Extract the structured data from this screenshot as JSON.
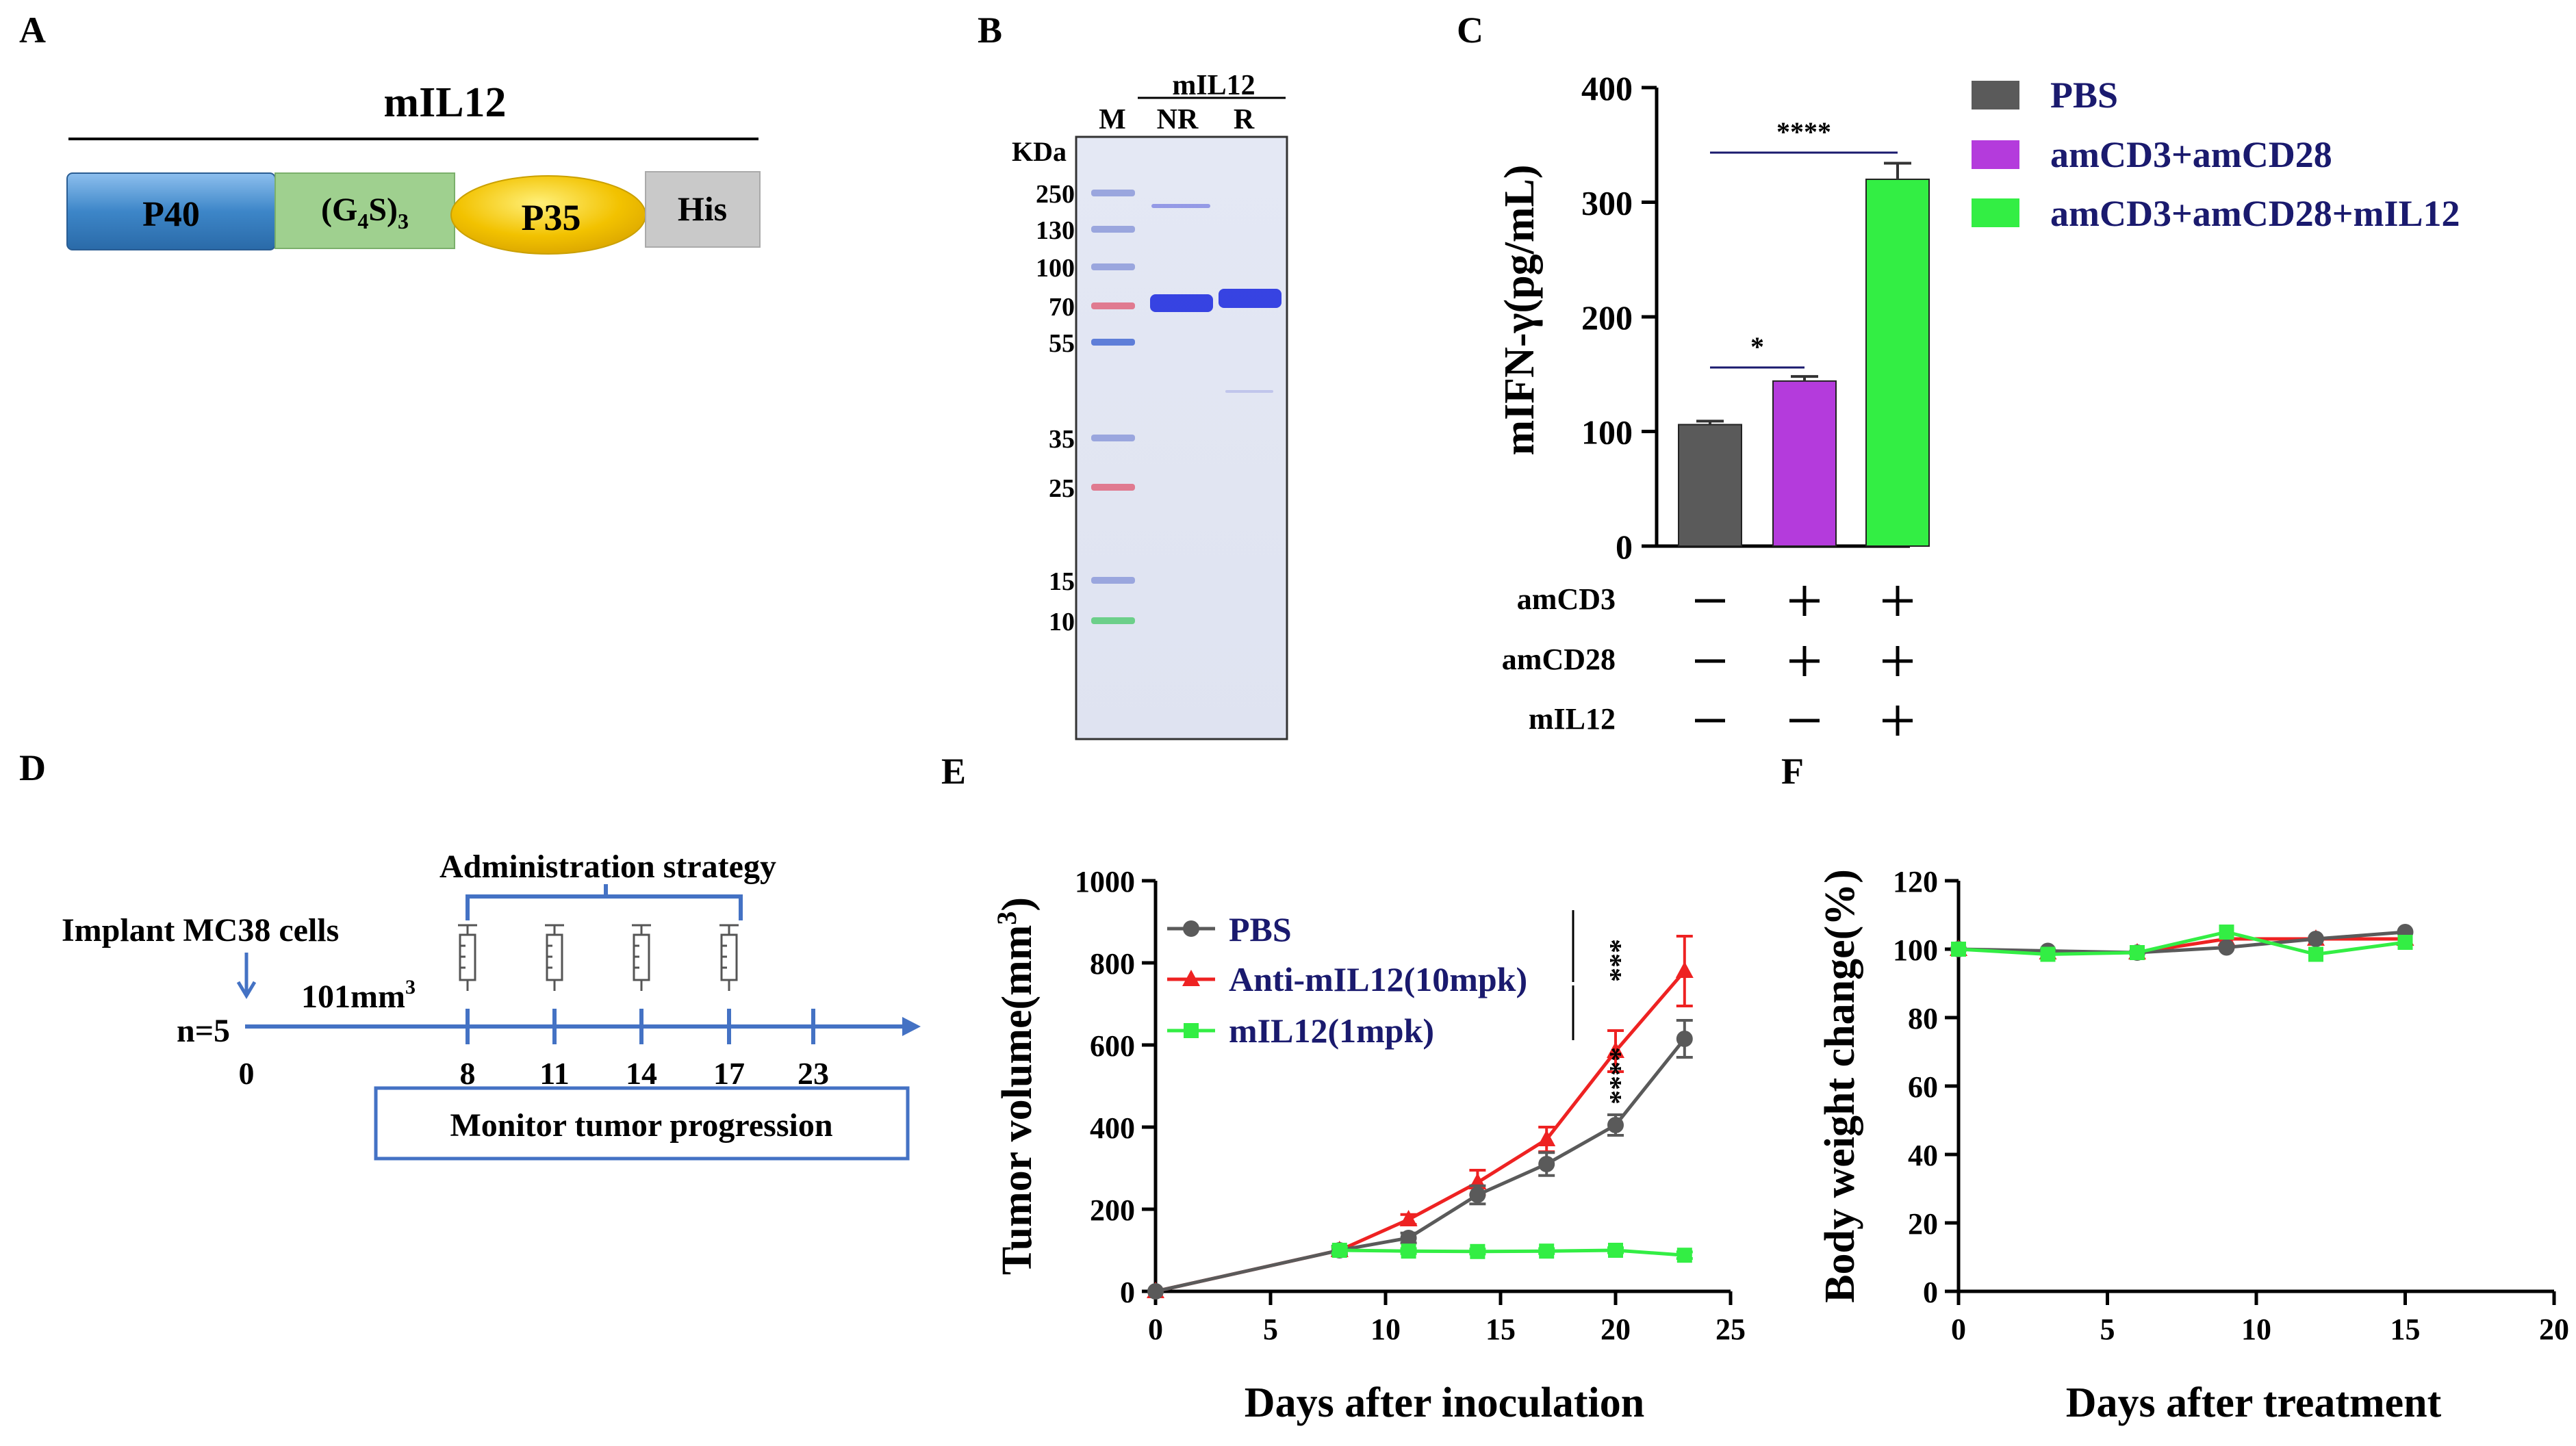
{
  "figure": {
    "panel_labels": [
      "A",
      "B",
      "C",
      "D",
      "E",
      "F"
    ]
  },
  "panel_a": {
    "title": "mIL12",
    "domains": [
      {
        "name": "P40",
        "color": "#3d86c8"
      },
      {
        "name": "(G4S)3",
        "color": "#9fd08f"
      },
      {
        "name": "P35",
        "color": "#f2c200"
      },
      {
        "name": "His",
        "color": "#c9c9c9"
      }
    ],
    "linker_main": "(G",
    "linker_sub1": "4",
    "linker_mid": "S)",
    "linker_sub2": "3"
  },
  "panel_b": {
    "group_label": "mIL12",
    "lanes": [
      "M",
      "NR",
      "R"
    ],
    "unit": "KDa",
    "markers": [
      "250",
      "130",
      "100",
      "70",
      "55",
      "35",
      "25",
      "15",
      "10"
    ]
  },
  "panel_d": {
    "implant_label": "Implant MC38 cells",
    "strategy_label": "Administration strategy",
    "n_label": "n=5",
    "volume_label": "101mm",
    "volume_sup": "3",
    "days": [
      "0",
      "8",
      "11",
      "14",
      "17",
      "23"
    ],
    "monitor_label": "Monitor tumor progression",
    "color": "#4472c4"
  },
  "chart_data": [
    {
      "panel": "C",
      "type": "bar",
      "ylabel": "mIFN-γ(pg/mL)",
      "ylim": [
        0,
        400
      ],
      "yticks": [
        0,
        100,
        200,
        300,
        400
      ],
      "categories": [
        "PBS",
        "amCD3+amCD28",
        "amCD3+amCD28+mIL12"
      ],
      "values": [
        106,
        144,
        320
      ],
      "errors": [
        3,
        4,
        14
      ],
      "colors": [
        "#5a5a5a",
        "#b43bdc",
        "#33ee44"
      ],
      "significance": [
        "*",
        "****"
      ],
      "condition_rows": [
        {
          "label": "amCD3",
          "values": [
            "−",
            "+",
            "+"
          ]
        },
        {
          "label": "amCD28",
          "values": [
            "−",
            "+",
            "+"
          ]
        },
        {
          "label": "mIL12",
          "values": [
            "−",
            "−",
            "+"
          ]
        }
      ],
      "legend_position": "top-right"
    },
    {
      "panel": "E",
      "type": "line",
      "xlabel": "Days after inoculation",
      "ylabel": "Tumor volume(mm",
      "ylabel_sup": "3",
      "ylabel_close": ")",
      "xlim": [
        0,
        25
      ],
      "ylim": [
        0,
        1000
      ],
      "xticks": [
        0,
        5,
        10,
        15,
        20,
        25
      ],
      "yticks": [
        0,
        200,
        400,
        600,
        800,
        1000
      ],
      "series": [
        {
          "name": "PBS",
          "color": "#5a5a5a",
          "marker": "circle",
          "x": [
            0,
            8,
            11,
            14,
            17,
            20,
            23
          ],
          "values": [
            0,
            100,
            130,
            235,
            310,
            405,
            615
          ],
          "errors": [
            0,
            10,
            12,
            22,
            28,
            25,
            45
          ]
        },
        {
          "name": "Anti-mIL12(10mpk)",
          "color": "#ee2222",
          "marker": "triangle",
          "x": [
            0,
            8,
            11,
            14,
            17,
            20,
            23
          ],
          "values": [
            0,
            100,
            175,
            265,
            370,
            585,
            780
          ],
          "errors": [
            0,
            8,
            12,
            30,
            30,
            50,
            85
          ]
        },
        {
          "name": "mIL12(1mpk)",
          "color": "#33ee44",
          "marker": "square",
          "x": [
            8,
            11,
            14,
            17,
            20,
            23
          ],
          "values": [
            100,
            98,
            97,
            98,
            100,
            88
          ],
          "errors": [
            8,
            6,
            6,
            6,
            6,
            8
          ]
        }
      ],
      "significance": [
        "****",
        "***"
      ],
      "legend_position": "top-left"
    },
    {
      "panel": "F",
      "type": "line",
      "xlabel": "Days after treatment",
      "ylabel": "Body weight change(%)",
      "xlim": [
        0,
        20
      ],
      "ylim": [
        0,
        120
      ],
      "xticks": [
        0,
        5,
        10,
        15,
        20
      ],
      "yticks": [
        0,
        20,
        40,
        60,
        80,
        100,
        120
      ],
      "series": [
        {
          "name": "PBS",
          "color": "#5a5a5a",
          "marker": "circle",
          "x": [
            0,
            3,
            6,
            9,
            12,
            15
          ],
          "values": [
            100,
            99.5,
            99,
            100.5,
            103,
            105
          ]
        },
        {
          "name": "Anti-mIL12(10mpk)",
          "color": "#ee2222",
          "marker": "triangle",
          "x": [
            0,
            3,
            6,
            9,
            12,
            15
          ],
          "values": [
            100,
            99,
            99,
            103,
            103,
            103
          ]
        },
        {
          "name": "mIL12(1mpk)",
          "color": "#33ee44",
          "marker": "square",
          "x": [
            0,
            3,
            6,
            9,
            12,
            15
          ],
          "values": [
            100,
            98.5,
            99,
            105,
            98.5,
            102
          ]
        }
      ]
    }
  ]
}
